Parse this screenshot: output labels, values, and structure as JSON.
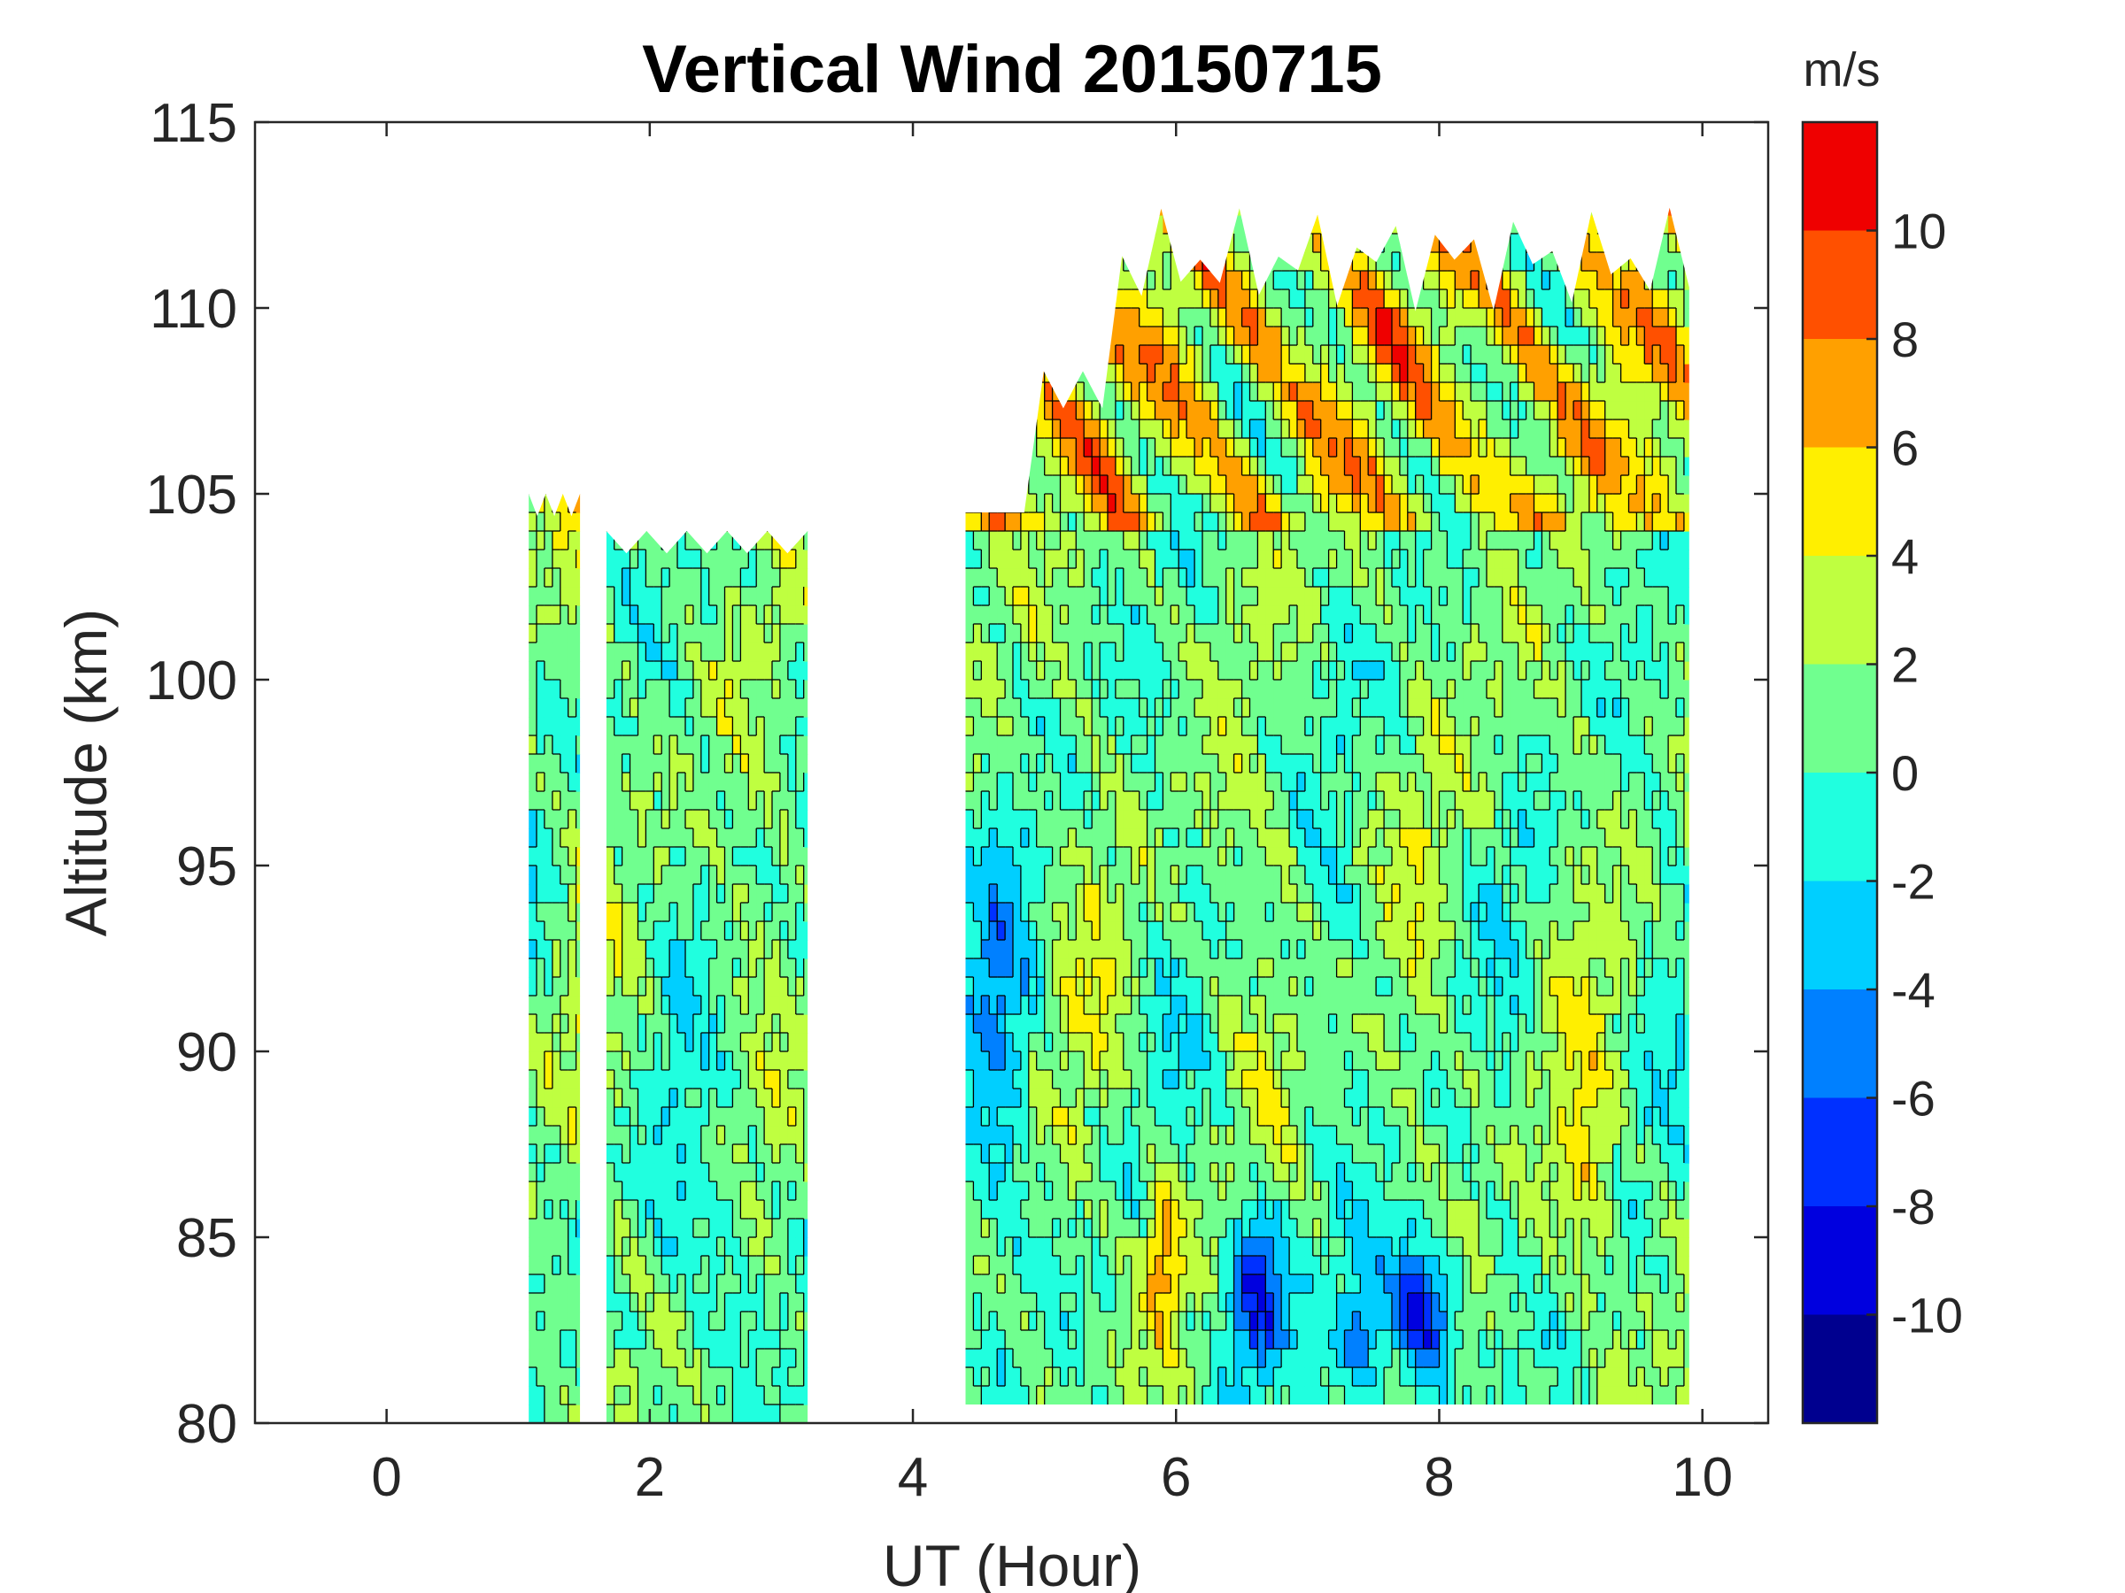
{
  "chart_data": {
    "type": "heatmap",
    "subtype": "filled-contour",
    "title": "Vertical Wind 20150715",
    "xlabel": "UT (Hour)",
    "ylabel": "Altitude (km)",
    "xlim": [
      -1,
      10.5
    ],
    "ylim": [
      80,
      115
    ],
    "xticks": [
      0,
      2,
      4,
      6,
      8,
      10
    ],
    "yticks": [
      80,
      85,
      90,
      95,
      100,
      105,
      110,
      115
    ],
    "colorbar": {
      "unit_label": "m/s",
      "range": [
        -12,
        12
      ],
      "tick_values": [
        -10,
        -8,
        -6,
        -4,
        -2,
        0,
        2,
        4,
        6,
        8,
        10
      ],
      "tick_labels": [
        "-10",
        "-8",
        "-6",
        "-4",
        "-2",
        "0",
        "2",
        "4",
        "6",
        "8",
        "10"
      ],
      "levels": [
        -12,
        -10,
        -8,
        -6,
        -4,
        -2,
        0,
        2,
        4,
        6,
        8,
        10,
        12
      ],
      "colors": [
        "#00008f",
        "#0000df",
        "#0030ff",
        "#0080ff",
        "#00cfff",
        "#20ffdf",
        "#70ff8f",
        "#bfff40",
        "#ffef00",
        "#ffa000",
        "#ff5000",
        "#ef0000",
        "#9f0000"
      ]
    },
    "data_segments": [
      {
        "t_start": 1.08,
        "t_end": 1.47,
        "alt_min": 80,
        "alt_max": 105
      },
      {
        "t_start": 1.67,
        "t_end": 3.2,
        "alt_min": 80,
        "alt_max": 104
      },
      {
        "t_start": 4.4,
        "t_end": 9.9,
        "alt_min": 80.5,
        "alt_max": 112
      }
    ],
    "notes": [
      "Strong downward wind (-8 to -12 m/s) near 82-85 km around 6.5 UT and 7.5-8 UT",
      "Strong upward wind (6 to 12 m/s) above 105 km after 5 UT",
      "Background vertical wind mostly between -2 and 4 m/s"
    ]
  }
}
